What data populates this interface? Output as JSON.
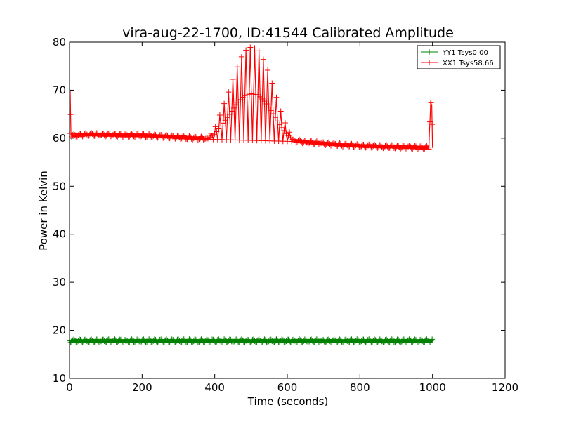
{
  "chart_data": {
    "type": "line",
    "title": "vira-aug-22-1700, ID:41544 Calibrated Amplitude",
    "xlabel": "Time (seconds)",
    "ylabel": "Power in Kelvin",
    "xlim": [
      0,
      1200
    ],
    "ylim": [
      10,
      80
    ],
    "xticks": [
      "0",
      "200",
      "400",
      "600",
      "800",
      "1000",
      "1200"
    ],
    "yticks": [
      "10",
      "20",
      "30",
      "40",
      "50",
      "60",
      "70",
      "80"
    ],
    "grid": false,
    "legend_position": "top-right",
    "marker": "+",
    "series": [
      {
        "name": "YY1 Tsys0.00",
        "color": "#008000",
        "x": [
          0,
          100,
          200,
          300,
          400,
          500,
          600,
          700,
          800,
          900,
          1000
        ],
        "y": [
          17.8,
          17.8,
          17.8,
          17.8,
          17.8,
          17.8,
          17.8,
          17.8,
          17.8,
          17.8,
          17.8
        ]
      },
      {
        "name": "XX1 Tsys58.66",
        "color": "#ff0000",
        "x": [
          0,
          2,
          4,
          50,
          100,
          150,
          200,
          250,
          300,
          350,
          380,
          400,
          420,
          440,
          460,
          480,
          500,
          520,
          540,
          560,
          580,
          600,
          620,
          650,
          700,
          750,
          800,
          850,
          900,
          950,
          990,
          995,
          998,
          1000
        ],
        "y": [
          61.0,
          70.0,
          60.5,
          60.8,
          60.7,
          60.6,
          60.6,
          60.4,
          60.2,
          60.0,
          60.0,
          62.0,
          66.0,
          70.0,
          74.5,
          78.0,
          79.0,
          78.5,
          75.5,
          71.0,
          66.0,
          62.0,
          59.5,
          59.2,
          58.9,
          58.6,
          58.4,
          58.3,
          58.2,
          58.1,
          58.0,
          67.5,
          67.0,
          58.1
        ]
      }
    ]
  }
}
